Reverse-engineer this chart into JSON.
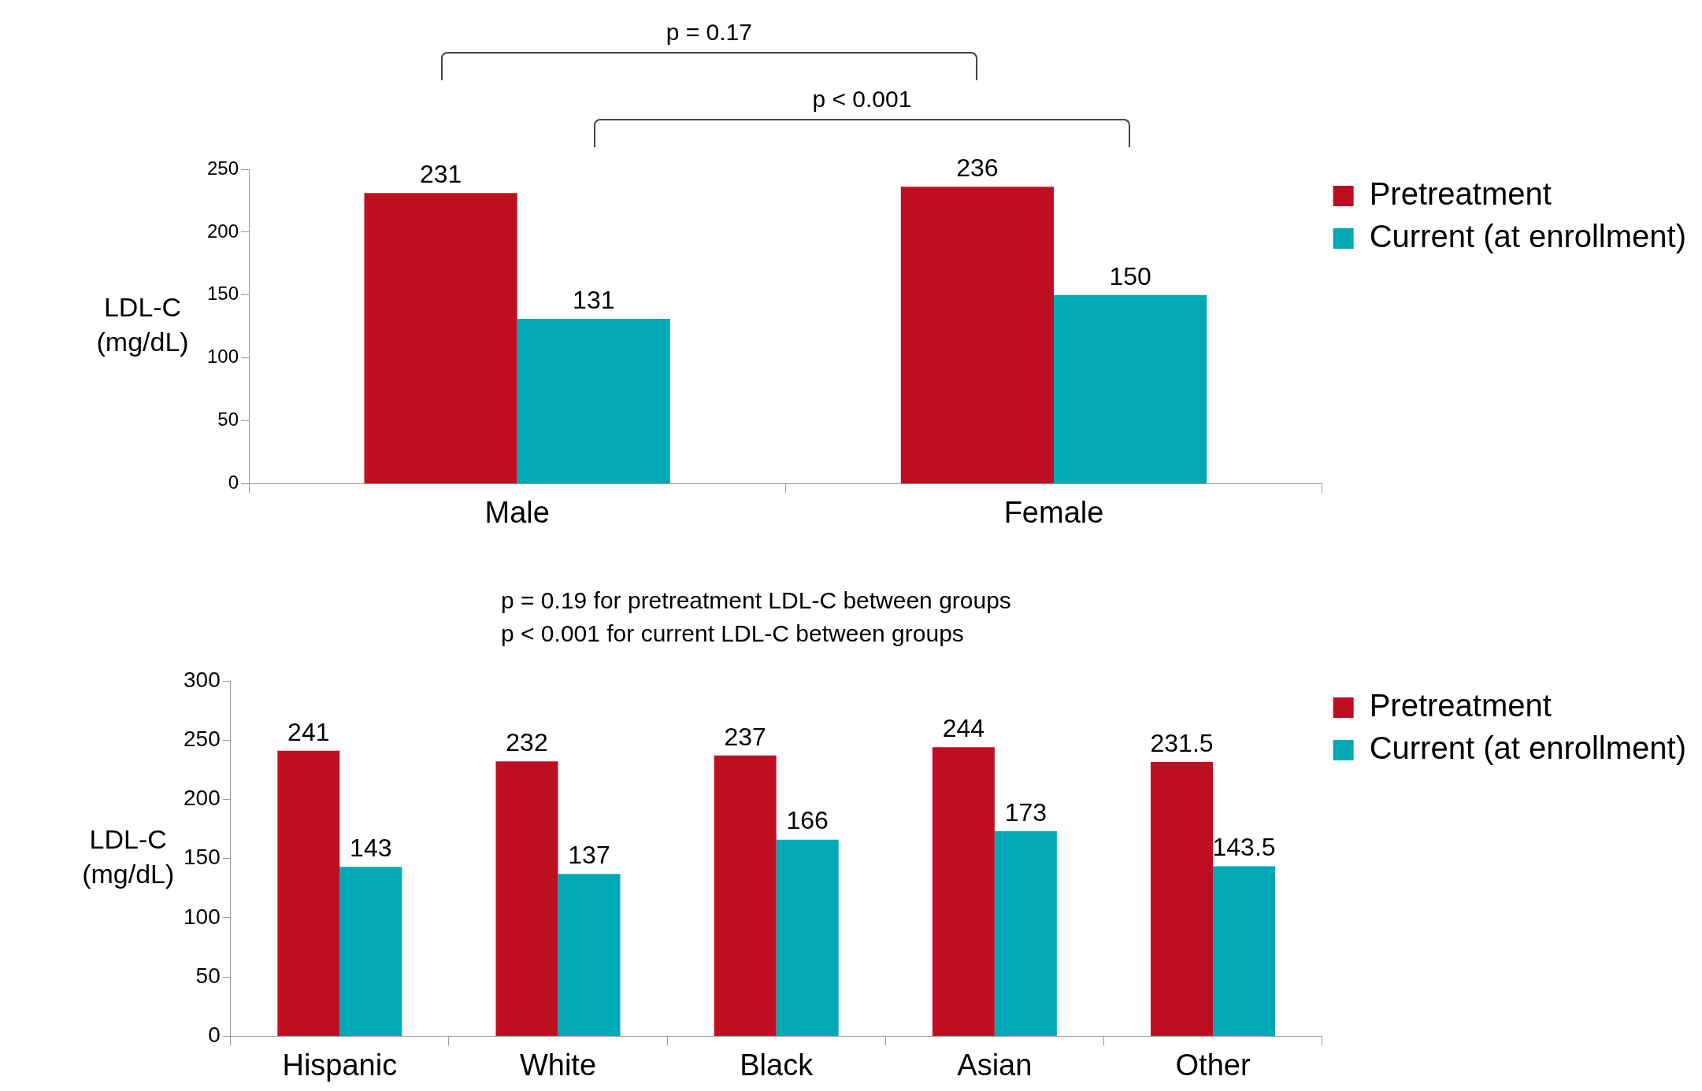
{
  "chart_data": [
    {
      "type": "bar",
      "ylabel": "LDL-C (mg/dL)",
      "categories": [
        "Male",
        "Female"
      ],
      "series": [
        {
          "name": "Pretreatment",
          "color": "#be0f22",
          "values": [
            231,
            236
          ]
        },
        {
          "name": "Current (at enrollment)",
          "color": "#00a9b5",
          "values": [
            131,
            150
          ]
        }
      ],
      "ylim": [
        0,
        250
      ],
      "yticks": [
        0,
        50,
        100,
        150,
        200,
        250
      ],
      "data_labels": true,
      "legend": "top right",
      "annotations": [
        "p = 0.17",
        "p < 0.001"
      ]
    },
    {
      "type": "bar",
      "ylabel": "LDL-C (mg/dL)",
      "categories": [
        "Hispanic",
        "White",
        "Black",
        "Asian",
        "Other"
      ],
      "series": [
        {
          "name": "Pretreatment",
          "color": "#be0f22",
          "values": [
            241,
            232,
            237,
            244,
            231.5
          ]
        },
        {
          "name": "Current (at enrollment)",
          "color": "#00a9b5",
          "values": [
            143,
            137,
            166,
            173,
            143.5
          ]
        }
      ],
      "ylim": [
        0,
        300
      ],
      "yticks": [
        0,
        50,
        100,
        150,
        200,
        250,
        300
      ],
      "data_labels": true,
      "legend": "top right",
      "annotations": [
        "p = 0.19 for pretreatment LDL-C between groups",
        "p < 0.001 for current LDL-C between groups"
      ]
    }
  ]
}
